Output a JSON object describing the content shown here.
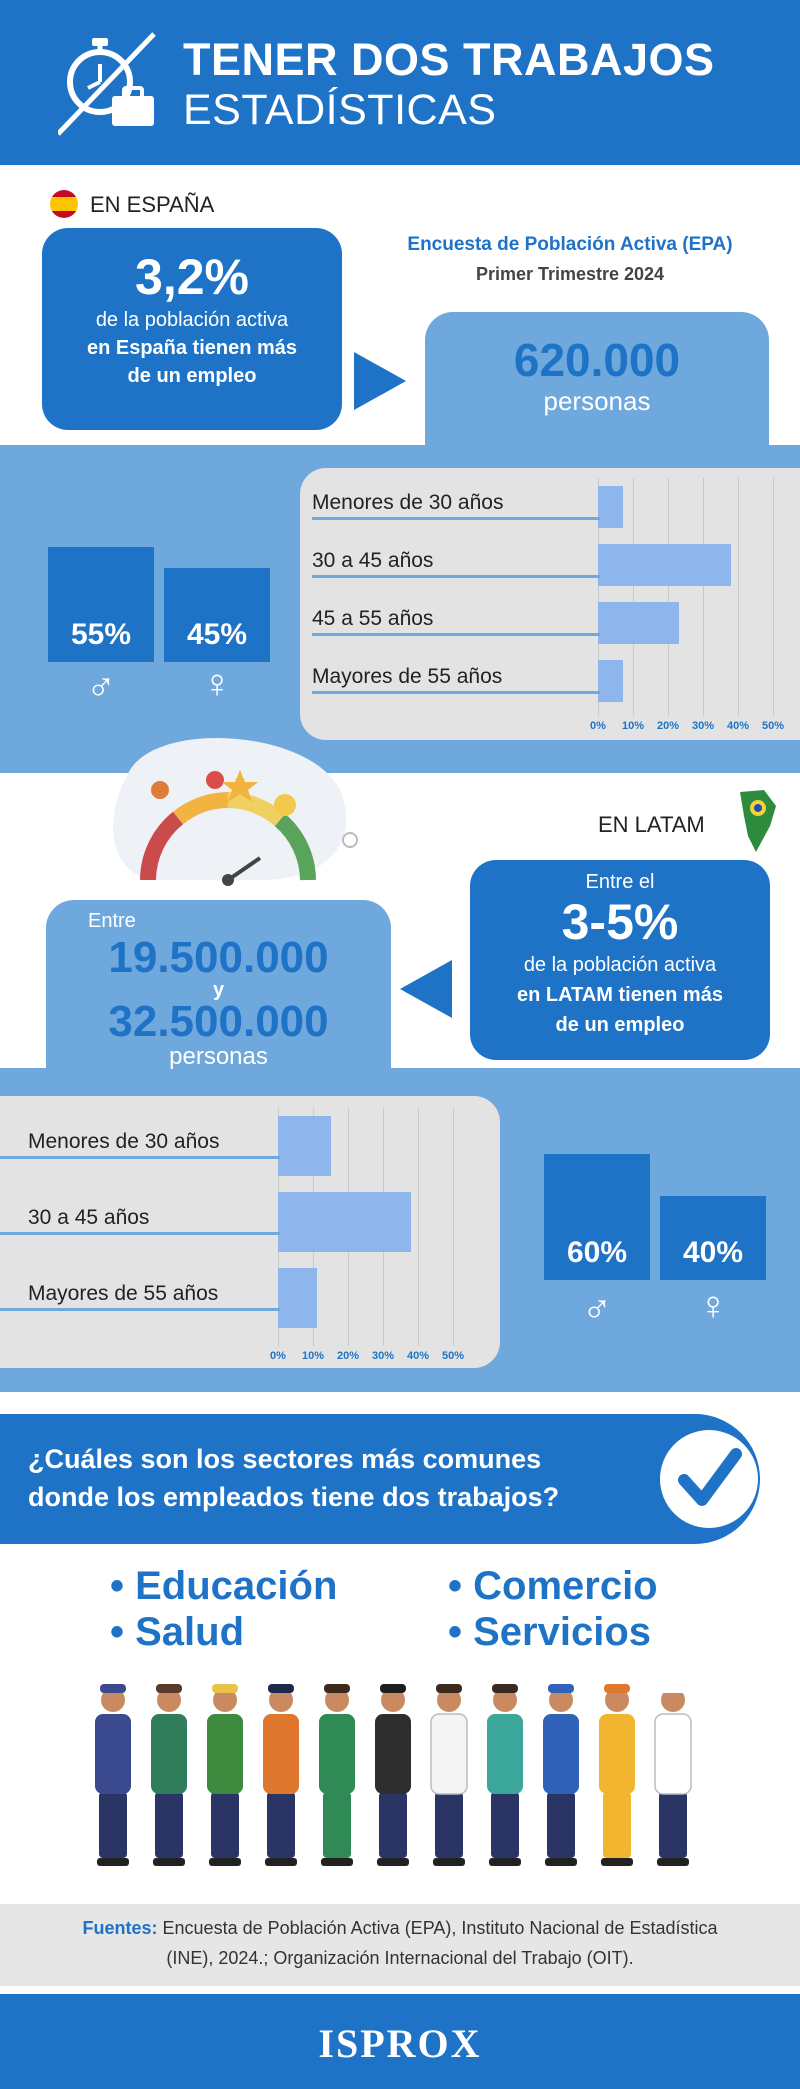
{
  "header": {
    "title": "TENER DOS TRABAJOS",
    "subtitle": "ESTADÍSTICAS",
    "icon": "stopwatch-briefcase-icon"
  },
  "spain": {
    "label": "EN ESPAÑA",
    "flag": "spain-flag-icon",
    "stat_big": "3,2%",
    "stat_line1": "de la población activa",
    "stat_line2": "en España tienen más",
    "stat_line3": "de un empleo",
    "survey": "Encuesta de Población Activa (EPA)",
    "period": "Primer Trimestre 2024",
    "count": "620.000",
    "count_unit": "personas",
    "male_pct": "55%",
    "female_pct": "45%",
    "male_value": 55,
    "female_value": 45,
    "age_labels": [
      "Menores de 30 años",
      "30 a 45 años",
      "45 a 55 años",
      "Mayores de 55 años"
    ],
    "age_values": [
      7,
      38,
      23,
      7
    ],
    "ticks": [
      "0%",
      "10%",
      "20%",
      "30%",
      "40%",
      "50%"
    ]
  },
  "latam": {
    "label": "EN LATAM",
    "prefix": "Entre el",
    "stat_big": "3-5%",
    "stat_line1": "de la población activa",
    "stat_line2": "en LATAM tienen más",
    "stat_line3": "de un empleo",
    "count_prefix": "Entre",
    "count_low": "19.500.000",
    "count_and": "y",
    "count_high": "32.500.000",
    "count_unit": "personas",
    "male_pct": "60%",
    "female_pct": "40%",
    "male_value": 60,
    "female_value": 40,
    "age_labels": [
      "Menores de 30 años",
      "30 a 45 años",
      "Mayores de 55 años"
    ],
    "age_values": [
      15,
      38,
      11
    ],
    "ticks": [
      "0%",
      "10%",
      "20%",
      "30%",
      "40%",
      "50%"
    ]
  },
  "sectors": {
    "question_line1": "¿Cuáles son los sectores más comunes",
    "question_line2": "donde los empleados tiene dos trabajos?",
    "items": [
      "Educación",
      "Comercio",
      "Salud",
      "Servicios"
    ]
  },
  "footer": {
    "sources_label": "Fuentes:",
    "sources_line1": "Encuesta de Población Activa (EPA), Instituto Nacional de Estadística",
    "sources_line2": "(INE), 2024.; Organización Internacional del Trabajo (OIT).",
    "brand": "ISPROX"
  },
  "colors": {
    "primary": "#1e73c6",
    "light": "#6fa8dc",
    "bar": "#8fb6ec",
    "panel": "#e3e3e3"
  }
}
